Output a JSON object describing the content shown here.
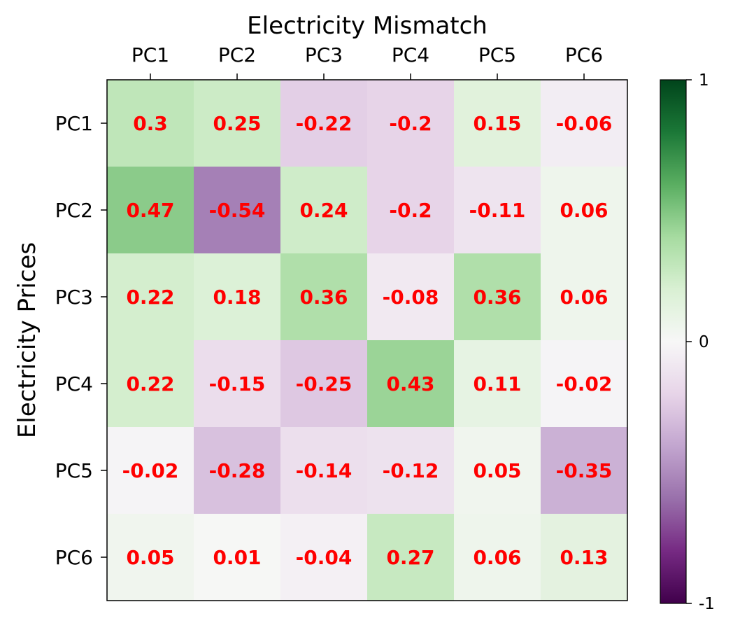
{
  "chart_data": {
    "type": "heatmap",
    "title": "",
    "xlabel": "Electricity Mismatch",
    "ylabel": "Electricity Prices",
    "x_categories": [
      "PC1",
      "PC2",
      "PC3",
      "PC4",
      "PC5",
      "PC6"
    ],
    "y_categories": [
      "PC1",
      "PC2",
      "PC3",
      "PC4",
      "PC5",
      "PC6"
    ],
    "values": [
      [
        0.3,
        0.25,
        -0.22,
        -0.2,
        0.15,
        -0.06
      ],
      [
        0.47,
        -0.54,
        0.24,
        -0.2,
        -0.11,
        0.06
      ],
      [
        0.22,
        0.18,
        0.36,
        -0.08,
        0.36,
        0.06
      ],
      [
        0.22,
        -0.15,
        -0.25,
        0.43,
        0.11,
        -0.02
      ],
      [
        -0.02,
        -0.28,
        -0.14,
        -0.12,
        0.05,
        -0.35
      ],
      [
        0.05,
        0.01,
        -0.04,
        0.27,
        0.06,
        0.13
      ]
    ],
    "value_range": [
      -1,
      1
    ],
    "colormap": "PRGn",
    "colorbar": {
      "ticks": [
        1,
        0,
        -1
      ],
      "tick_labels": [
        "1",
        "0",
        "-1"
      ]
    },
    "x_axis_position": "top",
    "annotation_color": "#ff0000",
    "grid": false
  }
}
